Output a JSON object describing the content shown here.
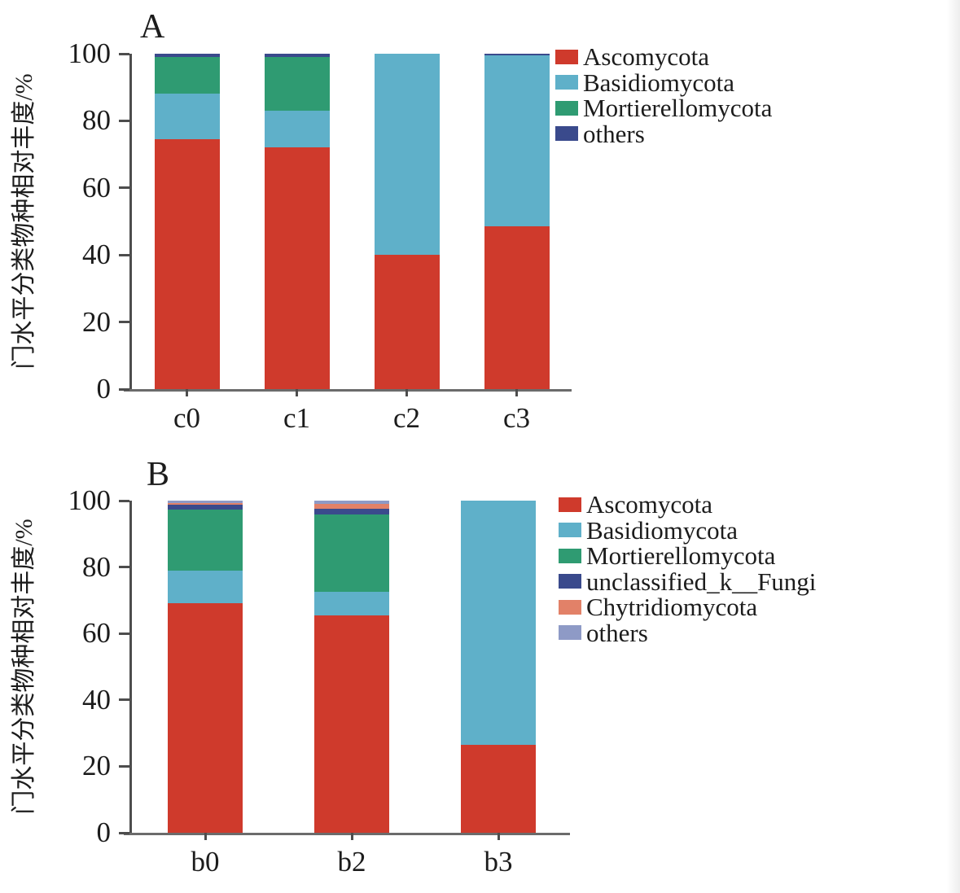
{
  "figure": {
    "background": "#ffffff",
    "axis_color": "#4d4d4d"
  },
  "chart_data": [
    {
      "type": "bar",
      "stacked": true,
      "panel_label": "A",
      "title": "",
      "xlabel": "",
      "ylabel": "门水平分类物种相对丰度/%",
      "ylim": [
        0,
        100
      ],
      "yticks": [
        0,
        20,
        40,
        60,
        80,
        100
      ],
      "grid": false,
      "legend_position": "top-right",
      "categories": [
        "c0",
        "c1",
        "c2",
        "c3"
      ],
      "series": [
        {
          "name": "Ascomycota",
          "color": "#cf3a2c",
          "values": [
            74.5,
            72.0,
            40.0,
            48.5
          ]
        },
        {
          "name": "Basidiomycota",
          "color": "#5fb0c9",
          "values": [
            13.5,
            11.0,
            60.0,
            51.0
          ]
        },
        {
          "name": "Mortierellomycota",
          "color": "#2f9b72",
          "values": [
            11.0,
            16.0,
            0.0,
            0.0
          ]
        },
        {
          "name": "others",
          "color": "#3a4a8c",
          "values": [
            1.0,
            1.0,
            0.0,
            0.5
          ]
        }
      ]
    },
    {
      "type": "bar",
      "stacked": true,
      "panel_label": "B",
      "title": "",
      "xlabel": "",
      "ylabel": "门水平分类物种相对丰度/%",
      "ylim": [
        0,
        100
      ],
      "yticks": [
        0,
        20,
        40,
        60,
        80,
        100
      ],
      "grid": false,
      "legend_position": "top-right",
      "categories": [
        "b0",
        "b2",
        "b3"
      ],
      "series": [
        {
          "name": "Ascomycota",
          "color": "#cf3a2c",
          "values": [
            69.0,
            65.5,
            26.5
          ]
        },
        {
          "name": "Basidiomycota",
          "color": "#5fb0c9",
          "values": [
            10.0,
            7.0,
            73.5
          ]
        },
        {
          "name": "Mortierellomycota",
          "color": "#2f9b72",
          "values": [
            18.3,
            23.4,
            0.0
          ]
        },
        {
          "name": "unclassified_k__Fungi",
          "color": "#3a4a8c",
          "values": [
            1.4,
            1.6,
            0.0
          ]
        },
        {
          "name": "Chytridiomycota",
          "color": "#e28168",
          "values": [
            0.6,
            1.5,
            0.0
          ]
        },
        {
          "name": "others",
          "color": "#8e9ac6",
          "values": [
            0.7,
            1.0,
            0.0
          ]
        }
      ]
    }
  ]
}
